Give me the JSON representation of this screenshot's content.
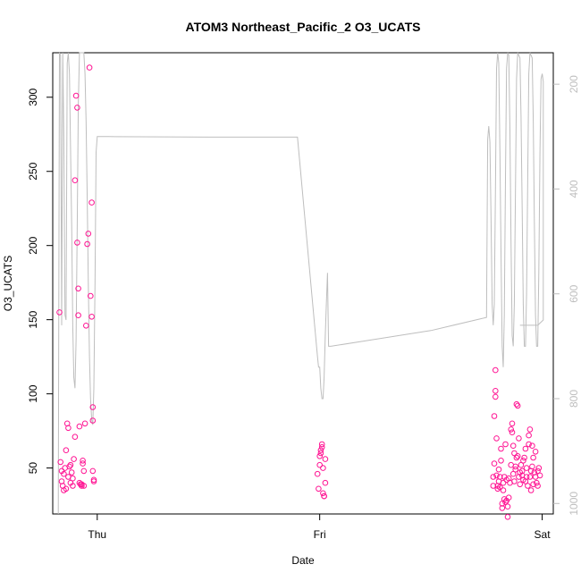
{
  "chart_data": {
    "type": "scatter",
    "title": "ATOM3 Northeast_Pacific_2 O3_UCATS",
    "xlabel": "Date",
    "ylabel": "O3_UCATS",
    "x_categories": [
      "Thu",
      "Fri",
      "Sat"
    ],
    "xlim": [
      -0.2,
      2.05
    ],
    "ylim": [
      19,
      330
    ],
    "y_ticks": [
      50,
      100,
      150,
      200,
      250,
      300
    ],
    "y2_label": "",
    "y2_ticks": [
      200,
      400,
      600,
      800,
      1000
    ],
    "y2_lim": [
      1020,
      140
    ],
    "point_color": "#ff1493",
    "line_color": "#bebebe",
    "series": [
      {
        "type": "scatter",
        "points": [
          [
            -0.17,
            155
          ],
          [
            -0.165,
            54
          ],
          [
            -0.16,
            48
          ],
          [
            -0.16,
            41
          ],
          [
            -0.155,
            38
          ],
          [
            -0.15,
            35
          ],
          [
            -0.15,
            46
          ],
          [
            -0.145,
            50
          ],
          [
            -0.14,
            62
          ],
          [
            -0.14,
            36
          ],
          [
            -0.135,
            80
          ],
          [
            -0.13,
            77
          ],
          [
            -0.13,
            44
          ],
          [
            -0.125,
            51
          ],
          [
            -0.12,
            40
          ],
          [
            -0.12,
            52
          ],
          [
            -0.115,
            47
          ],
          [
            -0.11,
            38
          ],
          [
            -0.11,
            43
          ],
          [
            -0.105,
            56
          ],
          [
            -0.1,
            71
          ],
          [
            -0.1,
            244
          ],
          [
            -0.095,
            301
          ],
          [
            -0.09,
            293
          ],
          [
            -0.09,
            202
          ],
          [
            -0.085,
            171
          ],
          [
            -0.085,
            153
          ],
          [
            -0.08,
            78
          ],
          [
            -0.08,
            40
          ],
          [
            -0.075,
            39
          ],
          [
            -0.07,
            39
          ],
          [
            -0.07,
            38
          ],
          [
            -0.065,
            55
          ],
          [
            -0.065,
            53
          ],
          [
            -0.06,
            48
          ],
          [
            -0.06,
            38
          ],
          [
            -0.055,
            80
          ],
          [
            -0.05,
            146
          ],
          [
            -0.045,
            201
          ],
          [
            -0.04,
            208
          ],
          [
            -0.035,
            320
          ],
          [
            -0.03,
            166
          ],
          [
            -0.025,
            229
          ],
          [
            -0.025,
            152
          ],
          [
            -0.02,
            91
          ],
          [
            -0.02,
            82
          ],
          [
            -0.02,
            48
          ],
          [
            -0.015,
            42
          ],
          [
            -0.015,
            41
          ]
        ]
      },
      {
        "type": "scatter",
        "points": [
          [
            0.99,
            46
          ],
          [
            0.995,
            36
          ],
          [
            1.0,
            52
          ],
          [
            1.0,
            58
          ],
          [
            1.005,
            60
          ],
          [
            1.005,
            62
          ],
          [
            1.01,
            64
          ],
          [
            1.01,
            66
          ],
          [
            1.015,
            50
          ],
          [
            1.015,
            33
          ],
          [
            1.02,
            31
          ],
          [
            1.02,
            31
          ],
          [
            1.025,
            40
          ],
          [
            1.025,
            56
          ]
        ]
      },
      {
        "type": "scatter",
        "points": [
          [
            1.78,
            44
          ],
          [
            1.78,
            38
          ],
          [
            1.785,
            53
          ],
          [
            1.785,
            85
          ],
          [
            1.79,
            116
          ],
          [
            1.79,
            102
          ],
          [
            1.79,
            98
          ],
          [
            1.795,
            70
          ],
          [
            1.795,
            45
          ],
          [
            1.8,
            38
          ],
          [
            1.8,
            36
          ],
          [
            1.805,
            49
          ],
          [
            1.805,
            41
          ],
          [
            1.81,
            44
          ],
          [
            1.81,
            37
          ],
          [
            1.815,
            63
          ],
          [
            1.815,
            55
          ],
          [
            1.82,
            26
          ],
          [
            1.82,
            23
          ],
          [
            1.825,
            40
          ],
          [
            1.825,
            35
          ],
          [
            1.83,
            44
          ],
          [
            1.83,
            29
          ],
          [
            1.835,
            66
          ],
          [
            1.835,
            27
          ],
          [
            1.84,
            28
          ],
          [
            1.84,
            42
          ],
          [
            1.845,
            17
          ],
          [
            1.845,
            24
          ],
          [
            1.85,
            43
          ],
          [
            1.85,
            30
          ],
          [
            1.855,
            40
          ],
          [
            1.86,
            52
          ],
          [
            1.86,
            76
          ],
          [
            1.865,
            74
          ],
          [
            1.865,
            80
          ],
          [
            1.87,
            65
          ],
          [
            1.87,
            46
          ],
          [
            1.875,
            41
          ],
          [
            1.875,
            60
          ],
          [
            1.88,
            49
          ],
          [
            1.88,
            51
          ],
          [
            1.885,
            57
          ],
          [
            1.885,
            93
          ],
          [
            1.89,
            92
          ],
          [
            1.89,
            58
          ],
          [
            1.895,
            70
          ],
          [
            1.895,
            44
          ],
          [
            1.9,
            39
          ],
          [
            1.9,
            47
          ],
          [
            1.905,
            52
          ],
          [
            1.91,
            48
          ],
          [
            1.91,
            45
          ],
          [
            1.915,
            42
          ],
          [
            1.915,
            55
          ],
          [
            1.92,
            57
          ],
          [
            1.925,
            41
          ],
          [
            1.925,
            63
          ],
          [
            1.93,
            50
          ],
          [
            1.93,
            44
          ],
          [
            1.935,
            38
          ],
          [
            1.94,
            66
          ],
          [
            1.94,
            72
          ],
          [
            1.945,
            76
          ],
          [
            1.945,
            44
          ],
          [
            1.95,
            35
          ],
          [
            1.95,
            48
          ],
          [
            1.955,
            51
          ],
          [
            1.955,
            65
          ],
          [
            1.96,
            57
          ],
          [
            1.96,
            39
          ],
          [
            1.965,
            47
          ],
          [
            1.97,
            61
          ],
          [
            1.97,
            44
          ],
          [
            1.975,
            40
          ],
          [
            1.98,
            38
          ],
          [
            1.98,
            48
          ],
          [
            1.985,
            50
          ],
          [
            1.99,
            45
          ]
        ]
      },
      {
        "type": "line",
        "axis": "y2",
        "points": [
          [
            -0.175,
            1060
          ],
          [
            -0.17,
            140
          ],
          [
            -0.165,
            145
          ],
          [
            -0.16,
            660
          ],
          [
            -0.155,
            140
          ],
          [
            -0.15,
            300
          ],
          [
            -0.145,
            640
          ],
          [
            -0.14,
            650
          ],
          [
            -0.135,
            160
          ],
          [
            -0.13,
            140
          ],
          [
            -0.125,
            180
          ],
          [
            -0.12,
            320
          ],
          [
            -0.115,
            470
          ],
          [
            -0.11,
            660
          ],
          [
            -0.105,
            760
          ],
          [
            -0.1,
            780
          ],
          [
            -0.095,
            690
          ],
          [
            -0.09,
            470
          ],
          [
            -0.085,
            240
          ],
          [
            -0.08,
            140
          ],
          [
            -0.075,
            140
          ],
          [
            -0.07,
            140
          ],
          [
            -0.06,
            140
          ],
          [
            -0.055,
            180
          ],
          [
            -0.05,
            270
          ],
          [
            -0.045,
            420
          ],
          [
            -0.04,
            580
          ],
          [
            -0.035,
            720
          ],
          [
            -0.03,
            800
          ],
          [
            -0.025,
            840
          ],
          [
            -0.02,
            850
          ],
          [
            -0.015,
            780
          ],
          [
            -0.01,
            580
          ],
          [
            -0.005,
            330
          ],
          [
            0.0,
            300
          ],
          [
            0.05,
            300
          ],
          [
            0.5,
            301
          ],
          [
            0.9,
            301
          ],
          [
            0.99,
            720
          ],
          [
            0.995,
            740
          ],
          [
            1.0,
            740
          ],
          [
            1.005,
            780
          ],
          [
            1.01,
            800
          ],
          [
            1.015,
            800
          ],
          [
            1.02,
            760
          ],
          [
            1.025,
            680
          ],
          [
            1.03,
            620
          ],
          [
            1.035,
            560
          ],
          [
            1.04,
            700
          ],
          [
            1.05,
            700
          ],
          [
            1.5,
            670
          ],
          [
            1.75,
            645
          ],
          [
            1.755,
            305
          ],
          [
            1.76,
            280
          ],
          [
            1.765,
            310
          ],
          [
            1.77,
            450
          ],
          [
            1.775,
            620
          ],
          [
            1.78,
            660
          ],
          [
            1.785,
            620
          ],
          [
            1.79,
            400
          ],
          [
            1.795,
            170
          ],
          [
            1.8,
            140
          ],
          [
            1.805,
            160
          ],
          [
            1.81,
            330
          ],
          [
            1.815,
            520
          ],
          [
            1.82,
            700
          ],
          [
            1.825,
            740
          ],
          [
            1.83,
            640
          ],
          [
            1.835,
            380
          ],
          [
            1.84,
            170
          ],
          [
            1.845,
            140
          ],
          [
            1.85,
            145
          ],
          [
            1.855,
            290
          ],
          [
            1.86,
            500
          ],
          [
            1.865,
            680
          ],
          [
            1.87,
            700
          ],
          [
            1.875,
            620
          ],
          [
            1.88,
            400
          ],
          [
            1.885,
            190
          ],
          [
            1.89,
            140
          ],
          [
            1.9,
            150
          ],
          [
            1.905,
            260
          ],
          [
            1.91,
            440
          ],
          [
            1.915,
            620
          ],
          [
            1.92,
            700
          ],
          [
            1.925,
            700
          ],
          [
            1.93,
            600
          ],
          [
            1.935,
            380
          ],
          [
            1.94,
            180
          ],
          [
            1.945,
            140
          ],
          [
            1.955,
            150
          ],
          [
            1.96,
            270
          ],
          [
            1.965,
            460
          ],
          [
            1.97,
            640
          ],
          [
            1.975,
            700
          ],
          [
            1.98,
            700
          ],
          [
            1.985,
            560
          ],
          [
            1.99,
            330
          ],
          [
            1.995,
            190
          ],
          [
            2.0,
            180
          ],
          [
            2.005,
            195
          ],
          [
            2.005,
            650
          ],
          [
            1.98,
            660
          ],
          [
            1.9,
            660
          ]
        ]
      }
    ]
  }
}
